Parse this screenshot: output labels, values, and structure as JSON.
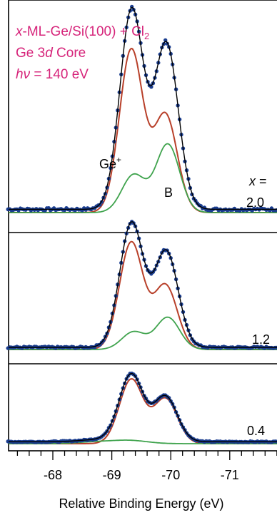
{
  "chart_data": {
    "type": "line",
    "annotations": {
      "system_prefix_italic": "x",
      "system_rest": "-ML-Ge/Si(100) + Cl",
      "system_subscript": "2",
      "core_pre": "Ge 3",
      "core_italic": "d",
      "core_post": " Core",
      "energy_italic": "hν",
      "energy_post": " = 140 eV",
      "peak_ge_label": "Ge",
      "peak_ge_sup": "+",
      "peak_b_label": "B",
      "coverage_label": "x =",
      "coverage_values": [
        "2.0",
        "1.2",
        "0.4"
      ]
    },
    "xlabel": "Relative Binding Energy (eV)",
    "xlim": [
      -67.25,
      -71.85
    ],
    "x_reversed": true,
    "x_ticks": [
      -68,
      -69,
      -70,
      -71
    ],
    "x_tick_labels": [
      "-68",
      "-69",
      "-70",
      "-71"
    ],
    "colors": {
      "data": "#1a3d8f",
      "fit": "#000000",
      "component_ge": "#b8402a",
      "component_b": "#3fa34d",
      "annotation": "#d6247a"
    },
    "panels": [
      {
        "coverage": "2.0",
        "series": [
          {
            "component": "ge_plus",
            "type": "gaussian_doublet",
            "baseline": 0.0,
            "center": -69.33,
            "amplitude": 1.0,
            "sigma": 0.2,
            "spin_orbit_split": -0.58,
            "branching_ratio": 0.6
          },
          {
            "component": "b",
            "type": "gaussian_doublet",
            "baseline": 0.0,
            "center": -69.95,
            "amplitude": 0.42,
            "sigma": 0.2,
            "spin_orbit_split": 0.58,
            "branching_ratio": 0.55
          },
          {
            "component": "fit",
            "type": "sum",
            "baseline": 0.02
          },
          {
            "component": "data",
            "type": "points",
            "baseline": 0.02,
            "noise": 0.008
          }
        ]
      },
      {
        "coverage": "1.2",
        "series": [
          {
            "component": "ge_plus",
            "type": "gaussian_doublet",
            "baseline": 0.0,
            "center": -69.33,
            "amplitude": 1.0,
            "sigma": 0.2,
            "spin_orbit_split": -0.58,
            "branching_ratio": 0.6
          },
          {
            "component": "b",
            "type": "gaussian_doublet",
            "baseline": 0.0,
            "center": -69.95,
            "amplitude": 0.3,
            "sigma": 0.2,
            "spin_orbit_split": 0.58,
            "branching_ratio": 0.55
          },
          {
            "component": "fit",
            "type": "sum",
            "baseline": 0.02
          },
          {
            "component": "data",
            "type": "points",
            "baseline": 0.02,
            "noise": 0.008
          }
        ]
      },
      {
        "coverage": "0.4",
        "series": [
          {
            "component": "ge_plus",
            "type": "gaussian_doublet",
            "baseline": 0.0,
            "center": -69.33,
            "amplitude": 1.0,
            "sigma": 0.2,
            "spin_orbit_split": -0.58,
            "branching_ratio": 0.7
          },
          {
            "component": "b",
            "type": "gaussian_doublet",
            "baseline": 0.0,
            "center": -69.3,
            "amplitude": 0.05,
            "sigma": 0.3,
            "spin_orbit_split": 0.58,
            "branching_ratio": 0.55
          },
          {
            "component": "fit",
            "type": "sum",
            "baseline": 0.03
          },
          {
            "component": "data",
            "type": "points",
            "baseline": 0.03,
            "noise": 0.008
          }
        ]
      }
    ]
  }
}
